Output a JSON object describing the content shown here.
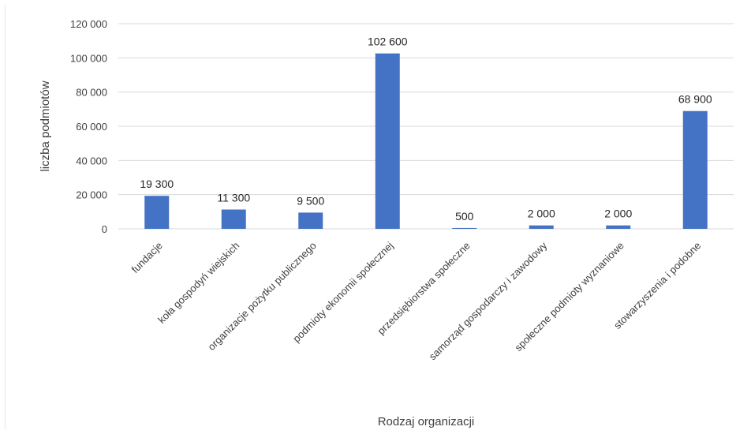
{
  "chart_data": {
    "type": "bar",
    "title": "",
    "xlabel": "Rodzaj organizacji",
    "ylabel": "liczba podmiotów",
    "categories": [
      "fundacje",
      "koła gospodyń wiejskich",
      "organizacje pożytku publicznego",
      "podmioty ekonomii społecznej",
      "przedsiębiorstwa społeczne",
      "samorząd gospodarczy i zawodowy",
      "społeczne podmioty wyznaniowe",
      "stowarzyszenia i podobne"
    ],
    "values": [
      19300,
      11300,
      9500,
      102600,
      500,
      2000,
      2000,
      68900
    ],
    "value_labels": [
      "19 300",
      "11 300",
      "9 500",
      "102 600",
      "500",
      "2 000",
      "2 000",
      "68 900"
    ],
    "ylim": [
      0,
      120000
    ],
    "yticks": [
      0,
      20000,
      40000,
      60000,
      80000,
      100000,
      120000
    ],
    "ytick_labels": [
      "0",
      "20 000",
      "40 000",
      "60 000",
      "80 000",
      "100 000",
      "120 000"
    ],
    "grid": true,
    "legend": "none",
    "bar_color": "#4472C4",
    "grid_color": "#D9D9D9"
  }
}
